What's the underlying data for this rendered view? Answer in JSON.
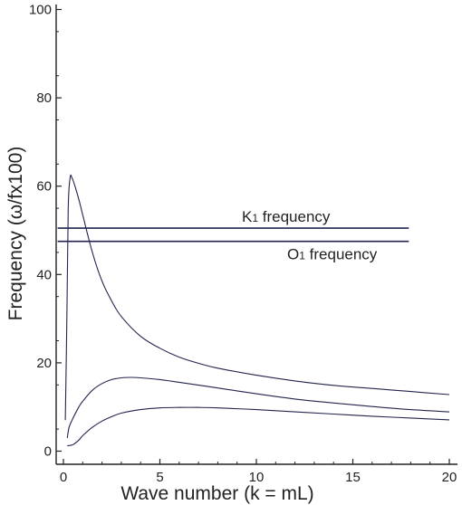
{
  "chart_data": {
    "type": "line",
    "title": "",
    "xlabel": "Wave number (k = mL)",
    "ylabel": "Frequency (ω/fx100)",
    "xlim": [
      0,
      20
    ],
    "ylim": [
      0,
      100
    ],
    "x_ticks": [
      "0",
      "5",
      "10",
      "15",
      "20"
    ],
    "y_ticks": [
      "0",
      "20",
      "40",
      "60",
      "80",
      "100"
    ],
    "grid": false,
    "series": [
      {
        "x": [
          0.1,
          0.18,
          0.25,
          0.35,
          0.45,
          0.6,
          0.8,
          1.0,
          1.5,
          2,
          2.5,
          3,
          4,
          5,
          6,
          7,
          8,
          10,
          12,
          14,
          16,
          18,
          20
        ],
        "y": [
          7,
          30,
          55,
          62,
          61.8,
          60,
          57,
          53.5,
          45,
          38.5,
          34,
          30.5,
          26,
          23.3,
          21.3,
          19.9,
          18.8,
          17.2,
          15.9,
          14.9,
          14.2,
          13.5,
          12.8
        ]
      },
      {
        "x": [
          0.2,
          0.3,
          0.5,
          0.8,
          1,
          1.5,
          2,
          2.5,
          3,
          3.5,
          4,
          5,
          6,
          8,
          10,
          12,
          14,
          16,
          18,
          20
        ],
        "y": [
          3,
          5.5,
          7.5,
          10,
          11.3,
          13.8,
          15.3,
          16.2,
          16.6,
          16.7,
          16.6,
          16.2,
          15.6,
          14.3,
          13,
          11.8,
          10.9,
          10.1,
          9.4,
          8.9
        ]
      },
      {
        "x": [
          0.2,
          0.5,
          0.8,
          1,
          1.5,
          2,
          2.5,
          3,
          4,
          5,
          6,
          7,
          8,
          10,
          12,
          14,
          16,
          18,
          20
        ],
        "y": [
          1.2,
          1.5,
          2.5,
          3.5,
          5.4,
          6.8,
          7.8,
          8.6,
          9.4,
          9.8,
          9.9,
          9.9,
          9.8,
          9.4,
          8.9,
          8.4,
          7.9,
          7.5,
          7.1
        ]
      }
    ],
    "reference_lines": [
      {
        "label": "K",
        "subscript": "1",
        "suffix": " frequency",
        "y": 50.5,
        "x_start": -0.3,
        "x_end": 17.9
      },
      {
        "label": "O",
        "subscript": "1",
        "suffix": " frequency",
        "y": 47.5,
        "x_start": -0.3,
        "x_end": 17.9
      }
    ],
    "line_color": "#23244f"
  }
}
